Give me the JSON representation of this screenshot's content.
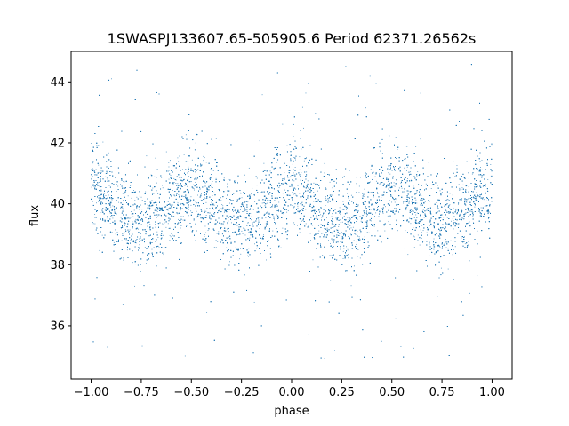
{
  "chart_data": {
    "type": "scatter",
    "title": "1SWASPJ133607.65-505905.6 Period 62371.26562s",
    "xlabel": "phase",
    "ylabel": "flux",
    "xlim": [
      -1.1,
      1.1
    ],
    "ylim": [
      34.25,
      45.0
    ],
    "xticks": [
      -1.0,
      -0.75,
      -0.5,
      -0.25,
      0.0,
      0.25,
      0.5,
      0.75,
      1.0
    ],
    "xtick_labels": [
      "−1.00",
      "−0.75",
      "−0.50",
      "−0.25",
      "0.00",
      "0.25",
      "0.50",
      "0.75",
      "1.00"
    ],
    "yticks": [
      36,
      38,
      40,
      42,
      44
    ],
    "ytick_labels": [
      "36",
      "38",
      "40",
      "42",
      "44"
    ],
    "grid": false,
    "series": [
      {
        "marker_color": "#1f77b4",
        "phase_range": [
          -1.0,
          1.0
        ],
        "mean_flux": 39.9,
        "sinusoid_amplitude": 0.55,
        "peak_phases": [
          -0.55,
          0.0,
          0.45,
          1.0
        ],
        "trough_phases": [
          -0.8,
          0.25,
          0.7
        ],
        "scatter_sigma": 0.75,
        "outlier_range": [
          34.8,
          44.6
        ],
        "approx_point_count": 16000
      }
    ]
  }
}
